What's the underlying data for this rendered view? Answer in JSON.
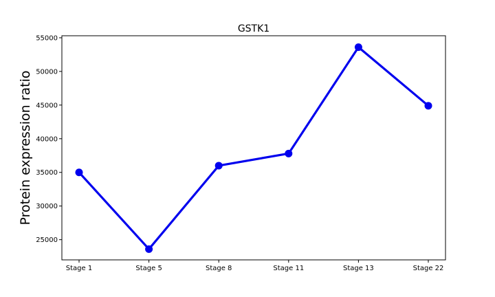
{
  "chart_data": {
    "type": "line",
    "title": "GSTK1",
    "xlabel": "",
    "ylabel": "Protein expression ratio",
    "categories": [
      "Stage 1",
      "Stage 5",
      "Stage 8",
      "Stage 11",
      "Stage 13",
      "Stage 22"
    ],
    "series": [
      {
        "values": [
          35000,
          23600,
          36000,
          37800,
          53600,
          44900
        ],
        "color": "#0000ee",
        "marker": "circle"
      }
    ],
    "yticks": [
      25000,
      30000,
      35000,
      40000,
      45000,
      50000,
      55000
    ],
    "ylim": [
      22000,
      55300
    ],
    "grid": false,
    "legend": "none"
  }
}
